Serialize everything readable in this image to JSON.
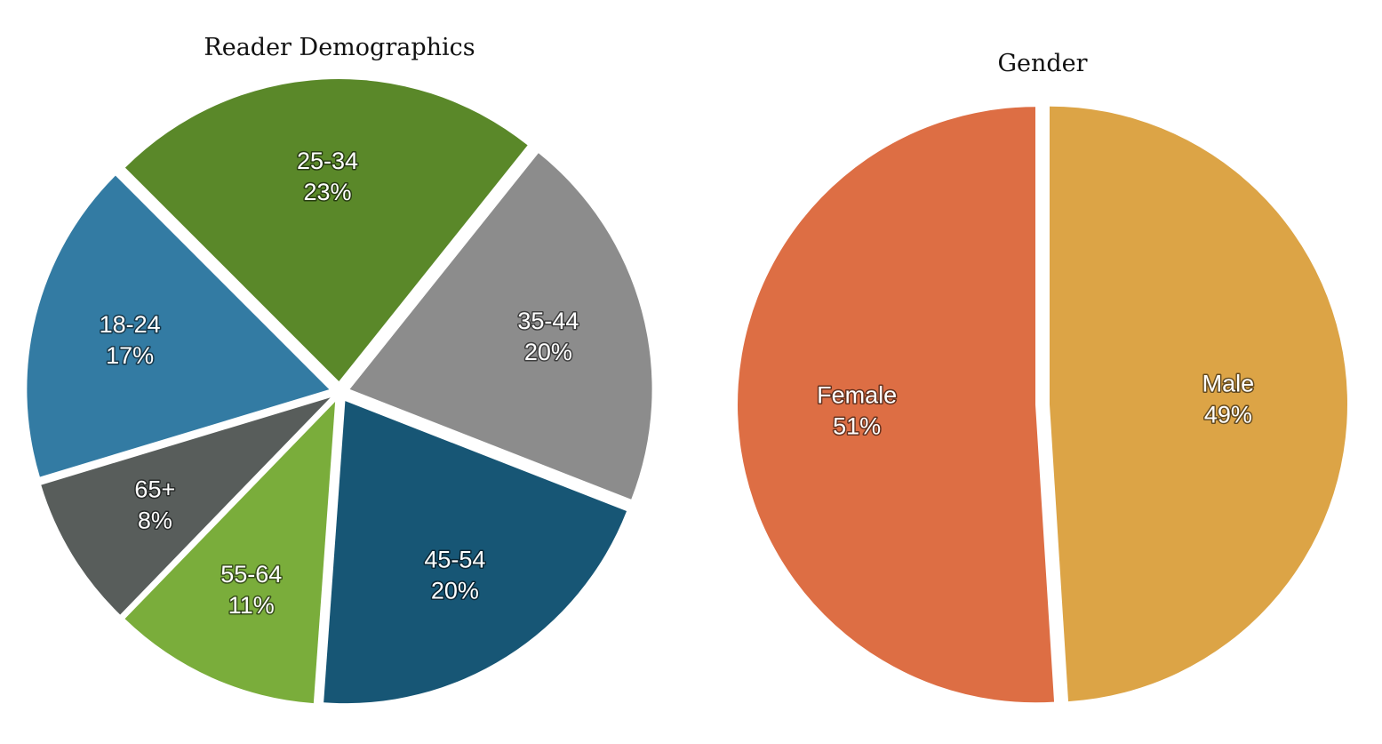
{
  "chart_data": [
    {
      "type": "pie",
      "title": "Reader Demographics",
      "slices": [
        {
          "label": "25-34",
          "value": 23,
          "value_label": "23%",
          "color": "#5a8829"
        },
        {
          "label": "35-44",
          "value": 20,
          "value_label": "20%",
          "color": "#8c8c8c"
        },
        {
          "label": "45-54",
          "value": 20,
          "value_label": "20%",
          "color": "#175675"
        },
        {
          "label": "55-64",
          "value": 11,
          "value_label": "11%",
          "color": "#7aad3b"
        },
        {
          "label": "65+",
          "value": 8,
          "value_label": "8%",
          "color": "#585d5b"
        },
        {
          "label": "18-24",
          "value": 17,
          "value_label": "17%",
          "color": "#337ba3"
        }
      ]
    },
    {
      "type": "pie",
      "title": "Gender",
      "slices": [
        {
          "label": "Male",
          "value": 49,
          "value_label": "49%",
          "color": "#dca446"
        },
        {
          "label": "Female",
          "value": 51,
          "value_label": "51%",
          "color": "#dd6e44"
        }
      ]
    }
  ]
}
